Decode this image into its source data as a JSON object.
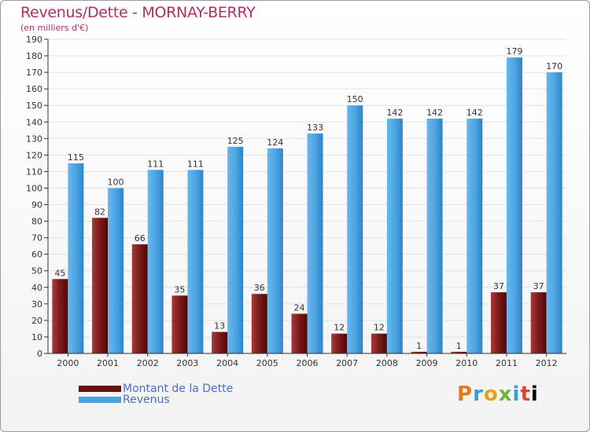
{
  "chart_data": {
    "type": "bar",
    "title": "Revenus/Dette - MORNAY-BERRY",
    "subtitle": "(en milliers d'€)",
    "categories": [
      "2000",
      "2001",
      "2002",
      "2003",
      "2004",
      "2005",
      "2006",
      "2007",
      "2008",
      "2009",
      "2010",
      "2011",
      "2012"
    ],
    "series": [
      {
        "name": "Montant de la Dette",
        "color": "#7a1a1a",
        "values": [
          45,
          82,
          66,
          35,
          13,
          36,
          24,
          12,
          12,
          1,
          1,
          37,
          37
        ]
      },
      {
        "name": "Revenus",
        "color": "#4aa3e0",
        "values": [
          115,
          100,
          111,
          111,
          125,
          124,
          133,
          150,
          142,
          142,
          142,
          179,
          170
        ]
      }
    ],
    "ylim": [
      0,
      190
    ],
    "ytick_step": 10,
    "grid": true,
    "legend": "bottom-left"
  },
  "brand": {
    "letters": [
      "P",
      "r",
      "o",
      "x",
      "i",
      "t",
      "i"
    ]
  }
}
